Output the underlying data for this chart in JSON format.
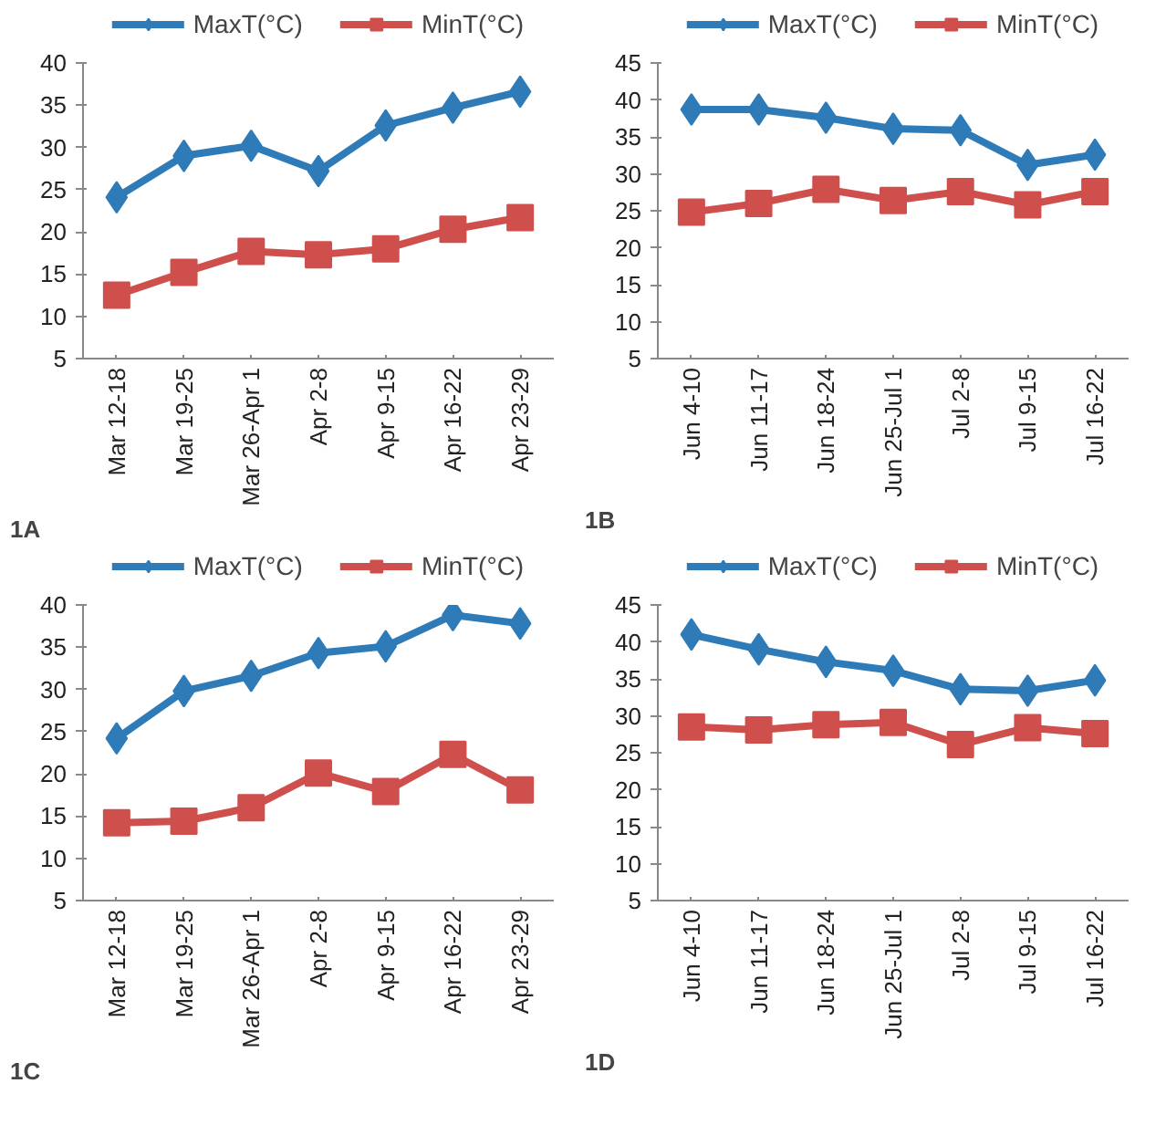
{
  "chart_data": [
    {
      "type": "line",
      "categories": [
        "Mar 12-18",
        "Mar 19-25",
        "Mar 26-Apr 1",
        "Apr 2-8",
        "Apr 9-15",
        "Apr 16-22",
        "Apr 23-29"
      ],
      "ylim": [
        5,
        40
      ],
      "yticks": [
        5,
        10,
        15,
        20,
        25,
        30,
        35,
        40
      ],
      "grid": false,
      "legend": "top",
      "annotations": [
        "1A"
      ],
      "series": [
        {
          "name": "MaxT(°C)",
          "color": "#2e7bb8",
          "marker": "diamond",
          "values": [
            24.1,
            29.0,
            30.2,
            27.2,
            32.6,
            34.7,
            36.6
          ]
        },
        {
          "name": "MinT(°C)",
          "color": "#cf4f4c",
          "marker": "square",
          "values": [
            12.5,
            15.2,
            17.7,
            17.3,
            18.0,
            20.3,
            21.7
          ]
        }
      ]
    },
    {
      "type": "line",
      "categories": [
        "Jun 4-10",
        "Jun 11-17",
        "Jun 18-24",
        "Jun 25-Jul 1",
        "Jul 2-8",
        "Jul 9-15",
        "Jul 16-22"
      ],
      "ylim": [
        5,
        45
      ],
      "yticks": [
        5,
        10,
        15,
        20,
        25,
        30,
        35,
        40,
        45
      ],
      "grid": false,
      "legend": "top",
      "annotations": [
        "1B"
      ],
      "series": [
        {
          "name": "MaxT(°C)",
          "color": "#2e7bb8",
          "marker": "diamond",
          "values": [
            38.7,
            38.7,
            37.6,
            36.1,
            35.9,
            31.2,
            32.6
          ]
        },
        {
          "name": "MinT(°C)",
          "color": "#cf4f4c",
          "marker": "square",
          "values": [
            24.8,
            26.0,
            27.9,
            26.4,
            27.6,
            25.8,
            27.6
          ]
        }
      ]
    },
    {
      "type": "line",
      "categories": [
        "Mar 12-18",
        "Mar 19-25",
        "Mar 26-Apr 1",
        "Apr 2-8",
        "Apr 9-15",
        "Apr 16-22",
        "Apr 23-29"
      ],
      "ylim": [
        5,
        40
      ],
      "yticks": [
        5,
        10,
        15,
        20,
        25,
        30,
        35,
        40
      ],
      "grid": false,
      "legend": "top",
      "annotations": [
        "1C"
      ],
      "series": [
        {
          "name": "MaxT(°C)",
          "color": "#2e7bb8",
          "marker": "diamond",
          "values": [
            24.2,
            29.8,
            31.6,
            34.3,
            35.1,
            38.8,
            37.8
          ]
        },
        {
          "name": "MinT(°C)",
          "color": "#cf4f4c",
          "marker": "square",
          "values": [
            14.2,
            14.4,
            16.0,
            20.1,
            17.9,
            22.3,
            18.1
          ]
        }
      ]
    },
    {
      "type": "line",
      "categories": [
        "Jun 4-10",
        "Jun 11-17",
        "Jun 18-24",
        "Jun 25-Jul 1",
        "Jul 2-8",
        "Jul 9-15",
        "Jul 16-22"
      ],
      "ylim": [
        5,
        45
      ],
      "yticks": [
        5,
        10,
        15,
        20,
        25,
        30,
        35,
        40,
        45
      ],
      "grid": false,
      "legend": "top",
      "annotations": [
        "1D"
      ],
      "series": [
        {
          "name": "MaxT(°C)",
          "color": "#2e7bb8",
          "marker": "diamond",
          "values": [
            41.0,
            39.0,
            37.3,
            36.1,
            33.6,
            33.4,
            34.8
          ]
        },
        {
          "name": "MinT(°C)",
          "color": "#cf4f4c",
          "marker": "square",
          "values": [
            28.5,
            28.1,
            28.8,
            29.1,
            26.1,
            28.4,
            27.6
          ]
        }
      ]
    }
  ]
}
